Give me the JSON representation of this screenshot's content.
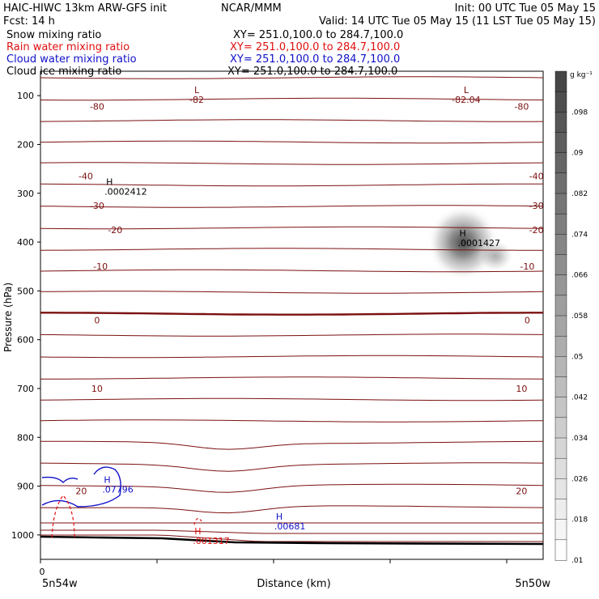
{
  "header": {
    "title_left": "HAIC-HIWC 13km ARW-GFS init",
    "org": "NCAR/MMM",
    "init": "Init: 00 UTC Tue 05 May 15",
    "fcst": "Fcst:    14 h",
    "valid": "Valid: 14 UTC Tue 05 May 15 (11 LST Tue 05 May 15)"
  },
  "legend": [
    {
      "label": "Snow mixing ratio",
      "xy": "XY= 251.0,100.0 to 284.7,100.0",
      "color": "#000000"
    },
    {
      "label": "Rain water mixing ratio",
      "xy": "XY= 251.0,100.0 to 284.7,100.0",
      "color": "#e01010"
    },
    {
      "label": "Cloud water mixing ratio",
      "xy": "XY= 251.0,100.0 to 284.7,100.0",
      "color": "#1010c8"
    },
    {
      "label": "Cloud ice mixing ratio",
      "xy": "XY= 251.0,100.0 to 284.7,100.0",
      "color": "#000000"
    }
  ],
  "chart_data": {
    "type": "contour",
    "ylabel": "Pressure (hPa)",
    "xlabel": "Distance (km)",
    "x_origin_label": "0",
    "x_left_label": "5n54w",
    "x_right_label": "5n50w",
    "y_ticks": [
      100,
      200,
      300,
      400,
      500,
      600,
      700,
      800,
      900,
      1000
    ],
    "ylim": [
      1050,
      50
    ],
    "xlim": [
      0,
      444
    ],
    "colorbar": {
      "unit": "g kg⁻¹",
      "labels": [
        ".098",
        ".09",
        ".082",
        ".074",
        ".066",
        ".058",
        ".05",
        ".042",
        ".034",
        ".026",
        ".018",
        ".01"
      ]
    },
    "temperature_line_color": "#7b1010",
    "temperature_labels": [
      {
        "text": "-80",
        "x": 50,
        "p": 122
      },
      {
        "text": "-82",
        "x": 138,
        "p": 108
      },
      {
        "text": "L",
        "x": 138,
        "p": 88
      },
      {
        "text": "-82.04",
        "x": 376,
        "p": 108
      },
      {
        "text": "L",
        "x": 376,
        "p": 88
      },
      {
        "text": "-80",
        "x": 425,
        "p": 122
      },
      {
        "text": "-40",
        "x": 40,
        "p": 265
      },
      {
        "text": "-40",
        "x": 438,
        "p": 265
      },
      {
        "text": "-30",
        "x": 50,
        "p": 325
      },
      {
        "text": "-30",
        "x": 438,
        "p": 325
      },
      {
        "text": "-20",
        "x": 66,
        "p": 375
      },
      {
        "text": "-20",
        "x": 438,
        "p": 375
      },
      {
        "text": "-10",
        "x": 53,
        "p": 450
      },
      {
        "text": "-10",
        "x": 430,
        "p": 450
      },
      {
        "text": "0",
        "x": 50,
        "p": 560
      },
      {
        "text": "0",
        "x": 430,
        "p": 560
      },
      {
        "text": "10",
        "x": 50,
        "p": 700
      },
      {
        "text": "10",
        "x": 425,
        "p": 700
      },
      {
        "text": "20",
        "x": 36,
        "p": 910
      },
      {
        "text": "20",
        "x": 425,
        "p": 910
      }
    ],
    "maxima": [
      {
        "mark": "H",
        "value": ".0002412",
        "x": 58,
        "p": 295,
        "color": "#000000"
      },
      {
        "mark": "H",
        "value": ".0001427",
        "x": 370,
        "p": 400,
        "color": "#000000"
      },
      {
        "mark": "H",
        "value": ".07796",
        "x": 56,
        "p": 905,
        "color": "#1010c8"
      },
      {
        "mark": "H",
        "value": ".001317",
        "x": 136,
        "p": 1010,
        "color": "#e01010"
      },
      {
        "mark": "H",
        "value": ".00681",
        "x": 208,
        "p": 980,
        "color": "#1010c8"
      }
    ],
    "snow_maximum": {
      "x": 372,
      "p": 400,
      "max_value": 0.0001427
    }
  }
}
